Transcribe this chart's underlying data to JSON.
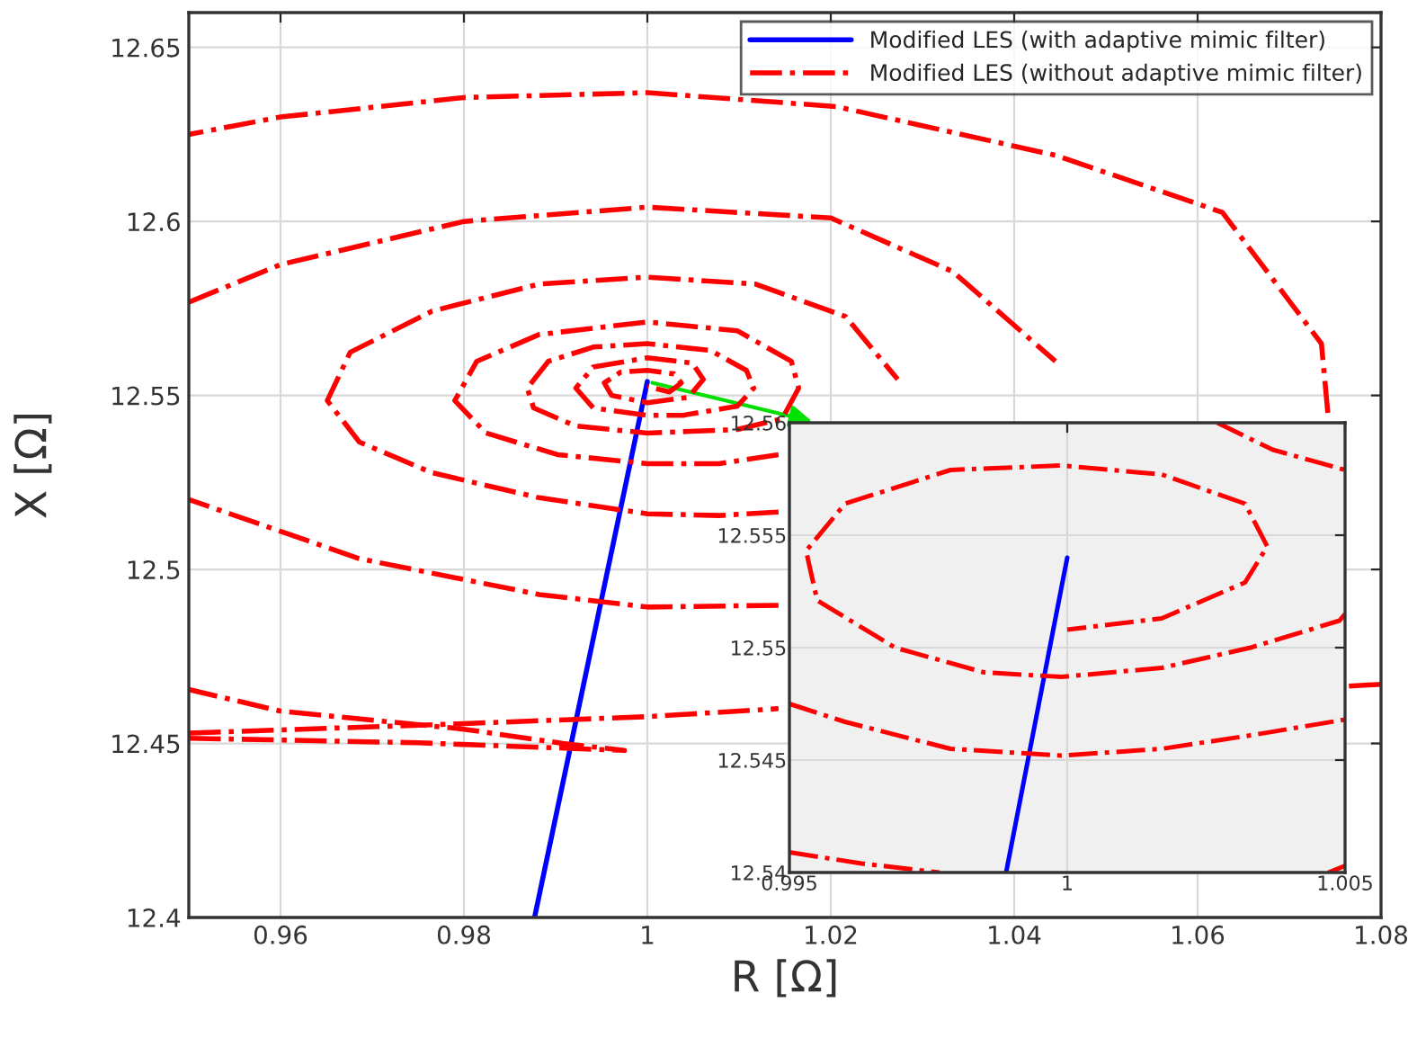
{
  "chart_data": [
    {
      "type": "line",
      "xlabel": "R [Ω]",
      "ylabel": "X [Ω]",
      "xlim": [
        0.95,
        1.08
      ],
      "ylim": [
        12.4,
        12.66
      ],
      "xticks": [
        0.96,
        0.98,
        1,
        1.02,
        1.04,
        1.06,
        1.08
      ],
      "yticks": [
        12.4,
        12.45,
        12.5,
        12.55,
        12.6,
        12.65
      ],
      "grid": true,
      "legend": "top right",
      "marker": "none",
      "series": [
        {
          "name": "Modified LES (with adaptive mimic filter)",
          "color": "#0000ff",
          "line_style": "solid",
          "x": [
            1.0,
            0.9877
          ],
          "values": [
            12.554,
            12.4
          ]
        },
        {
          "name": "Modified LES (without adaptive mimic filter)",
          "color": "#ff0000",
          "line_style": "dashdot",
          "x": [
            0.95,
            0.975,
            0.9975,
            0.9908,
            0.98,
            0.96,
            0.95,
            null,
            0.95,
            0.98,
            1.0,
            1.0143,
            null,
            1.0765,
            1.08,
            null,
            1.0742,
            1.0735,
            1.0627,
            1.0445,
            1.0206,
            1.0,
            0.98,
            0.96,
            0.95,
            null,
            0.95,
            0.96,
            0.98,
            1.0,
            1.02,
            1.0333,
            1.0445,
            null,
            1.0143,
            1.0,
            0.9882,
            0.9686,
            0.95,
            null,
            1.0143,
            1.0078,
            1.0,
            0.9882,
            0.9765,
            0.9686,
            0.9651,
            0.9676,
            0.9765,
            0.9882,
            1.0,
            1.0118,
            1.0216,
            1.0273,
            null,
            1.0143,
            1.0078,
            1.0,
            0.9902,
            0.9824,
            0.979,
            0.9814,
            0.9882,
            1.0,
            1.0098,
            1.0157,
            1.0165,
            1.0147,
            1.0098,
            1.0,
            0.9922,
            0.9876,
            0.9869,
            0.9892,
            0.9941,
            1.0,
            1.0069,
            1.0108,
            1.0116,
            1.0098,
            1.0039,
            1.0,
            0.9941,
            0.9922,
            0.9941,
            1.0,
            1.0049,
            1.0061,
            1.0045,
            1.0,
            0.9961,
            0.9953,
            0.9971,
            1.0,
            1.0029,
            1.0037,
            1.0024,
            1.0
          ],
          "values": [
            12.4515,
            12.4502,
            12.448,
            12.45,
            12.4541,
            12.4593,
            12.4655,
            null,
            12.453,
            12.4557,
            12.4577,
            12.46,
            null,
            12.4665,
            12.467,
            null,
            12.545,
            12.5649,
            12.6026,
            12.619,
            12.633,
            12.637,
            12.6356,
            12.63,
            12.625,
            null,
            12.5768,
            12.5876,
            12.6,
            12.6041,
            12.601,
            12.5856,
            12.5598,
            null,
            12.4897,
            12.4892,
            12.4928,
            12.5031,
            12.5201,
            null,
            12.5165,
            12.5155,
            12.516,
            12.5206,
            12.5278,
            12.5366,
            12.5485,
            12.5624,
            12.5742,
            12.582,
            12.584,
            12.582,
            12.5727,
            12.5546,
            null,
            12.533,
            12.5304,
            12.5304,
            12.533,
            12.5392,
            12.5485,
            12.5598,
            12.5675,
            12.5711,
            12.5686,
            12.5598,
            12.5521,
            12.5433,
            12.5402,
            12.5392,
            12.5412,
            12.5464,
            12.5521,
            12.5598,
            12.5639,
            12.5649,
            12.5629,
            12.5572,
            12.5521,
            12.5469,
            12.5443,
            12.5443,
            12.5464,
            12.5521,
            12.5582,
            12.5608,
            12.5593,
            12.5546,
            12.5495,
            12.5479,
            12.55,
            12.5536,
            12.5567,
            12.5572,
            12.5562,
            12.5536,
            12.551,
            12.5526
          ]
        }
      ]
    },
    {
      "type": "line",
      "xlim": [
        0.995,
        1.005
      ],
      "ylim": [
        12.54,
        12.56
      ],
      "xticks": [
        0.995,
        1,
        1.005
      ],
      "yticks": [
        12.54,
        12.545,
        12.55,
        12.555,
        12.56
      ],
      "grid": true,
      "marker": "none",
      "series": [
        {
          "color": "#0000ff",
          "line_style": "solid",
          "x": [
            1.0,
            0.9989
          ],
          "values": [
            12.554,
            12.54
          ]
        },
        {
          "color": "#ff0000",
          "line_style": "dashdot",
          "x": [
            1.0027,
            1.0037,
            1.005,
            null,
            0.995,
            0.996,
            0.9979,
            0.9999,
            1.0017,
            1.0033,
            1.005,
            null,
            1.005,
            1.0049,
            1.0033,
            1.0017,
            0.9999,
            0.9985,
            0.9969,
            0.9955,
            0.9953,
            0.996,
            0.9979,
            0.9999,
            1.0017,
            1.0032,
            1.0036,
            1.0032,
            1.0017,
            1.0,
            null,
            0.995,
            0.9963,
            0.9977,
            null,
            1.0047,
            1.005
          ],
          "values": [
            12.56,
            12.5588,
            12.5579,
            null,
            12.5475,
            12.5467,
            12.5455,
            12.5452,
            12.5455,
            12.5461,
            12.5468,
            null,
            12.5515,
            12.5512,
            12.55,
            12.5491,
            12.5487,
            12.5489,
            12.55,
            12.5521,
            12.5543,
            12.5564,
            12.5579,
            12.5581,
            12.5577,
            12.5564,
            12.5545,
            12.5529,
            12.5513,
            12.5508,
            null,
            12.5409,
            12.5404,
            12.54,
            null,
            12.54,
            12.5403
          ]
        }
      ]
    }
  ]
}
